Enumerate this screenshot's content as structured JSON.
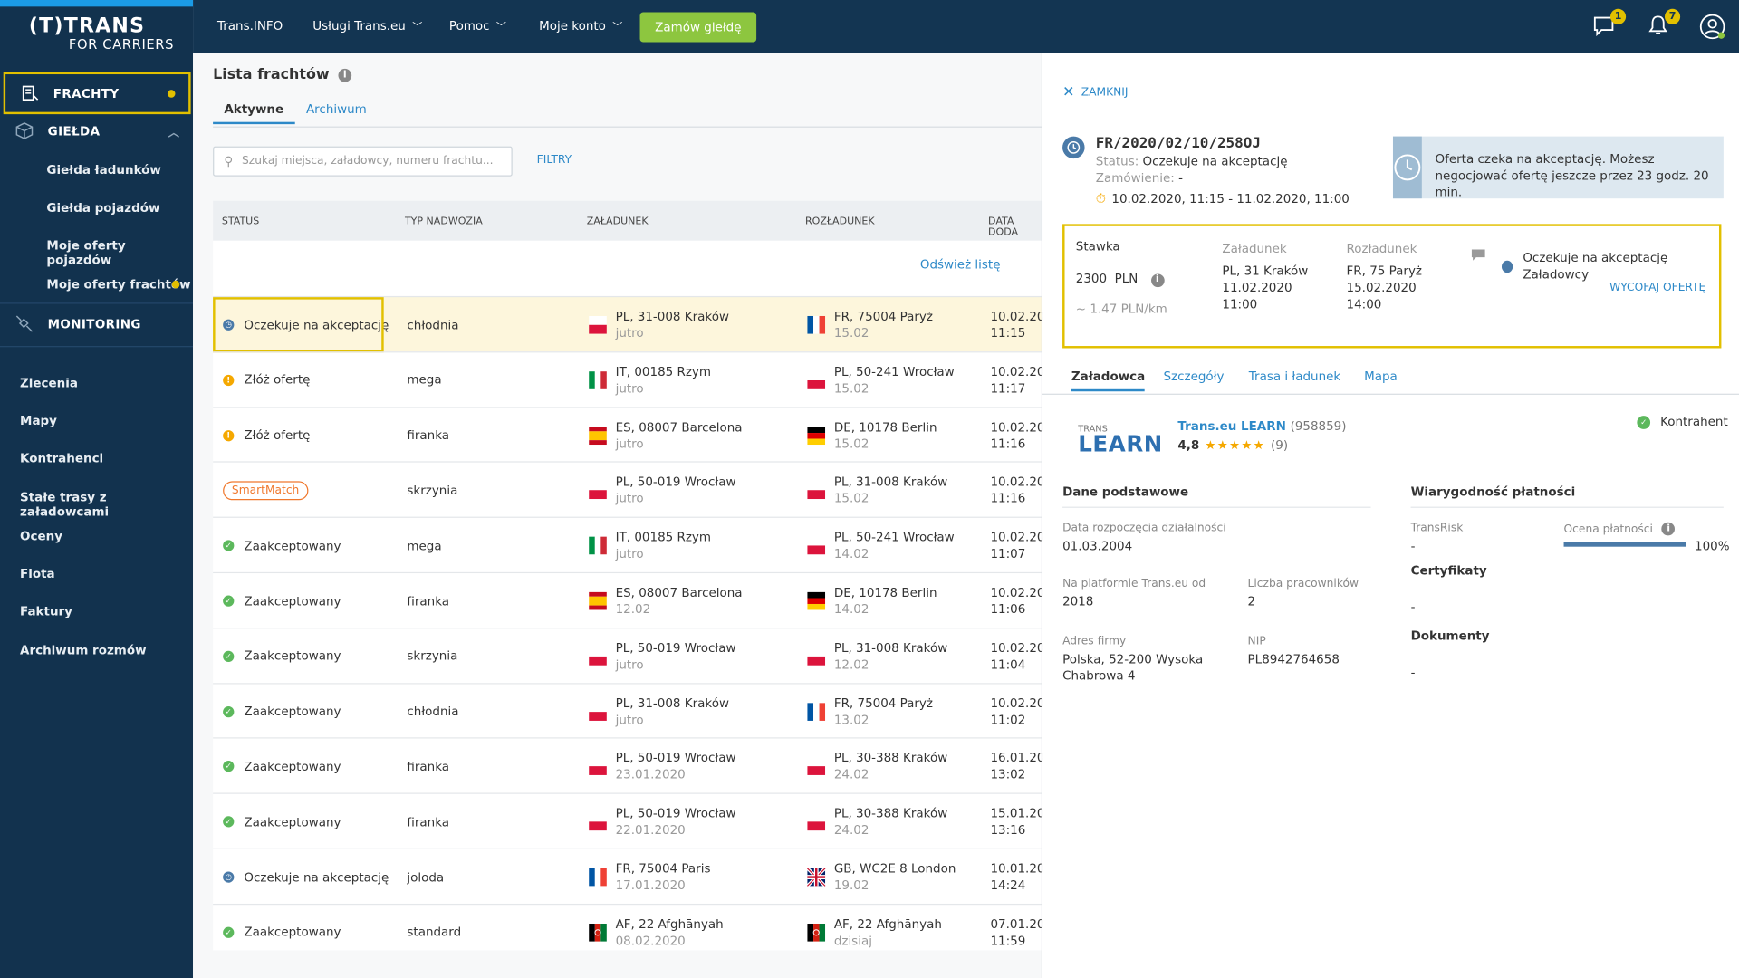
{
  "app": {
    "logo_top": "(T)TRANS",
    "logo_bottom": "FOR CARRIERS"
  },
  "sidebar": {
    "frachty": "FRACHTY",
    "gielda": "GIEŁDA",
    "gielda_items": [
      "Giełda ładunków",
      "Giełda pojazdów",
      "Moje oferty pojazdów",
      "Moje oferty frachtów"
    ],
    "monitoring": "MONITORING",
    "lower_items": [
      "Zlecenia",
      "Mapy",
      "Kontrahenci",
      "Stałe trasy z załadowcami",
      "Oceny",
      "Flota",
      "Faktury",
      "Archiwum rozmów"
    ]
  },
  "topnav": {
    "items": [
      "Trans.INFO",
      "Usługi Trans.eu",
      "Pomoc",
      "Moje konto"
    ],
    "cta": "Zamów giełdę",
    "messages_badge": "1",
    "notifications_badge": "7"
  },
  "list": {
    "title": "Lista frachtów",
    "tab_active": "Aktywne",
    "tab_archive": "Archiwum",
    "search_placeholder": "Szukaj miejsca, załadowcy, numeru frachtu...",
    "filters": "FILTRY",
    "refresh": "Odśwież listę",
    "columns": [
      "STATUS",
      "TYP NADWOZIA",
      "ZAŁADUNEK",
      "ROZŁADUNEK",
      "DATA DODA"
    ],
    "rows": [
      {
        "status": "Oczekuje na akceptację",
        "status_type": "clock",
        "body": "chłodnia",
        "from": "PL, 31-008 Kraków",
        "from_date": "jutro",
        "from_flag": "PL",
        "to": "FR, 75004 Paryż",
        "to_date": "15.02",
        "to_flag": "FR",
        "added_date": "10.02.202",
        "added_time": "11:15"
      },
      {
        "status": "Złóż ofertę",
        "status_type": "warn",
        "body": "mega",
        "from": "IT, 00185 Rzym",
        "from_date": "jutro",
        "from_flag": "IT",
        "to": "PL, 50-241 Wrocław",
        "to_date": "15.02",
        "to_flag": "PL",
        "added_date": "10.02.202",
        "added_time": "11:17"
      },
      {
        "status": "Złóż ofertę",
        "status_type": "warn",
        "body": "firanka",
        "from": "ES, 08007 Barcelona",
        "from_date": "jutro",
        "from_flag": "ES",
        "to": "DE, 10178 Berlin",
        "to_date": "15.02",
        "to_flag": "DE",
        "added_date": "10.02.202",
        "added_time": "11:16"
      },
      {
        "status": "SmartMatch",
        "status_type": "smart",
        "body": "skrzynia",
        "from": "PL, 50-019 Wrocław",
        "from_date": "jutro",
        "from_flag": "PL",
        "to": "PL, 31-008 Kraków",
        "to_date": "15.02",
        "to_flag": "PL",
        "added_date": "10.02.202",
        "added_time": "11:16"
      },
      {
        "status": "Zaakceptowany",
        "status_type": "ok",
        "body": "mega",
        "from": "IT, 00185 Rzym",
        "from_date": "jutro",
        "from_flag": "IT",
        "to": "PL, 50-241 Wrocław",
        "to_date": "14.02",
        "to_flag": "PL",
        "added_date": "10.02.202",
        "added_time": "11:07"
      },
      {
        "status": "Zaakceptowany",
        "status_type": "ok",
        "body": "firanka",
        "from": "ES, 08007 Barcelona",
        "from_date": "12.02",
        "from_flag": "ES",
        "to": "DE, 10178 Berlin",
        "to_date": "14.02",
        "to_flag": "DE",
        "added_date": "10.02.202",
        "added_time": "11:06"
      },
      {
        "status": "Zaakceptowany",
        "status_type": "ok",
        "body": "skrzynia",
        "from": "PL, 50-019 Wrocław",
        "from_date": "jutro",
        "from_flag": "PL",
        "to": "PL, 31-008 Kraków",
        "to_date": "12.02",
        "to_flag": "PL",
        "added_date": "10.02.202",
        "added_time": "11:04"
      },
      {
        "status": "Zaakceptowany",
        "status_type": "ok",
        "body": "chłodnia",
        "from": "PL, 31-008 Kraków",
        "from_date": "jutro",
        "from_flag": "PL",
        "to": "FR, 75004 Paryż",
        "to_date": "13.02",
        "to_flag": "FR",
        "added_date": "10.02.202",
        "added_time": "11:02"
      },
      {
        "status": "Zaakceptowany",
        "status_type": "ok",
        "body": "firanka",
        "from": "PL, 50-019 Wrocław",
        "from_date": "23.01.2020",
        "from_flag": "PL",
        "to": "PL, 30-388 Kraków",
        "to_date": "24.02",
        "to_flag": "PL",
        "added_date": "16.01.202",
        "added_time": "13:02"
      },
      {
        "status": "Zaakceptowany",
        "status_type": "ok",
        "body": "firanka",
        "from": "PL, 50-019 Wrocław",
        "from_date": "22.01.2020",
        "from_flag": "PL",
        "to": "PL, 30-388 Kraków",
        "to_date": "24.02",
        "to_flag": "PL",
        "added_date": "15.01.202",
        "added_time": "13:16"
      },
      {
        "status": "Oczekuje na akceptację",
        "status_type": "clock",
        "body": "joloda",
        "from": "FR, 75004 Paris",
        "from_date": "17.01.2020",
        "from_flag": "FR",
        "to": "GB, WC2E 8 London",
        "to_date": "19.02",
        "to_flag": "GB",
        "added_date": "10.01.202",
        "added_time": "14:24"
      },
      {
        "status": "Zaakceptowany",
        "status_type": "ok",
        "body": "standard",
        "from": "AF, 22 Afghānyah",
        "from_date": "08.02.2020",
        "from_flag": "AF",
        "to": "AF, 22 Afghānyah",
        "to_date": "dzisiaj",
        "to_flag": "AF",
        "added_date": "07.01.202",
        "added_time": "11:59"
      }
    ]
  },
  "detail": {
    "close": "ZAMKNIJ",
    "freight_id": "FR/2020/02/10/258OJ",
    "status_label": "Status:",
    "status_value": "Oczekuje na akceptację",
    "order_label": "Zamówienie:",
    "order_value": "-",
    "date_range": "10.02.2020, 11:15 - 11.02.2020, 11:00",
    "notice": "Oferta czeka na akceptację. Możesz negocjować ofertę jeszcze przez 23 godz. 20 min.",
    "offer": {
      "rate_label": "Stawka",
      "rate_value": "2300",
      "currency": "PLN",
      "per_km": "~ 1.47 PLN/km",
      "loading_label": "Załadunek",
      "loading_place": "PL, 31 Kraków",
      "loading_date": "11.02.2020",
      "loading_time": "11:00",
      "unloading_label": "Rozładunek",
      "unloading_place": "FR, 75 Paryż",
      "unloading_date": "15.02.2020",
      "unloading_time": "14:00",
      "status": "Oczekuje na akceptację Załadowcy",
      "withdraw": "WYCOFAJ OFERTĘ"
    },
    "tabs": [
      "Załadowca",
      "Szczegóły",
      "Trasa i ładunek",
      "Mapa"
    ],
    "company": {
      "logo_small": "TRANS",
      "logo_big": "LEARN",
      "name": "Trans.eu LEARN",
      "id": "(958859)",
      "rating": "4,8",
      "rating_value": 4.8,
      "rating_count": "(9)",
      "kontrahent": "Kontrahent"
    },
    "basic": {
      "title": "Dane podstawowe",
      "start_label": "Data rozpoczęcia działalności",
      "start_value": "01.03.2004",
      "platform_label": "Na platformie Trans.eu od",
      "platform_value": "2018",
      "employees_label": "Liczba pracowników",
      "employees_value": "2",
      "address_label": "Adres firmy",
      "address_line1": "Polska, 52-200 Wysoka",
      "address_line2": "Chabrowa 4",
      "nip_label": "NIP",
      "nip_value": "PL8942764658"
    },
    "payment": {
      "title": "Wiarygodność płatności",
      "transrisk_label": "TransRisk",
      "transrisk_value": "-",
      "score_label": "Ocena płatności",
      "score_value": "100%",
      "score_fraction": 1.0,
      "certs_title": "Certyfikaty",
      "certs_value": "-",
      "docs_title": "Dokumenty",
      "docs_value": "-"
    }
  },
  "colors": {
    "sidebar": "#12324e",
    "topnav": "#133552",
    "accent": "#2d89c8",
    "cta": "#8dc63f",
    "highlight": "#e2c000"
  }
}
